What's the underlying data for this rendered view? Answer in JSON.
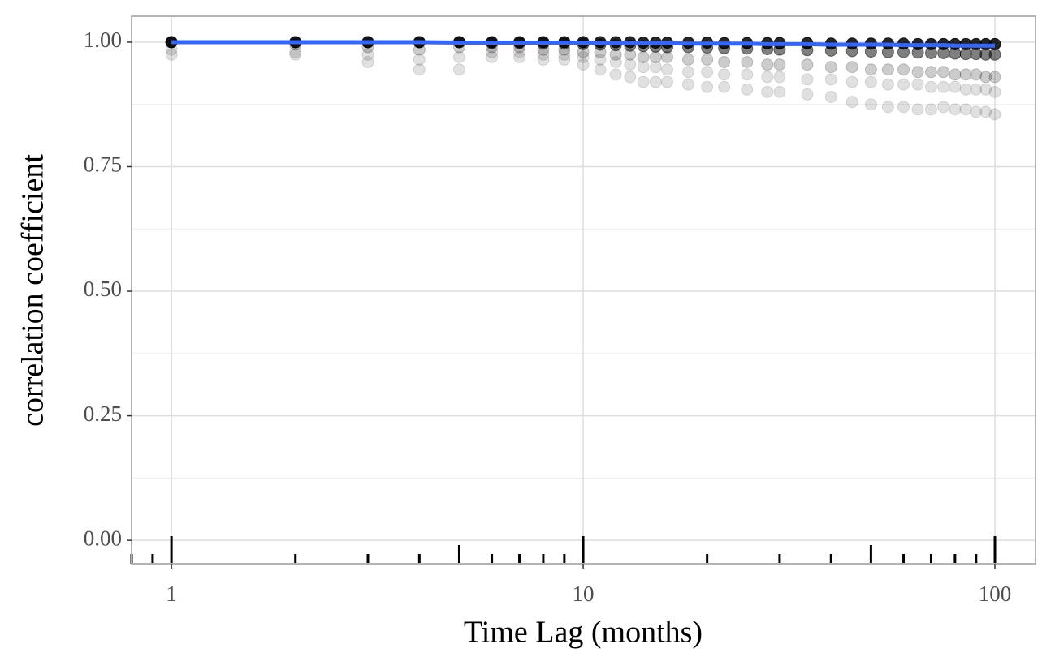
{
  "chart_data": {
    "type": "scatter",
    "x_label": "Time Lag (months)",
    "y_label": "correlation coefficient",
    "x_log": true,
    "xlim": [
      0.8,
      125.5
    ],
    "xticks": [
      1,
      10,
      100
    ],
    "ylim": [
      -0.047,
      1.052
    ],
    "yticks": [
      {
        "value": 0,
        "label": "0.00"
      },
      {
        "value": 0.25,
        "label": "0.25"
      },
      {
        "value": 0.5,
        "label": "0.50"
      },
      {
        "value": 0.75,
        "label": "0.75"
      },
      {
        "value": 1,
        "label": "1.00"
      }
    ],
    "minor_yticks": [
      0.125,
      0.375,
      0.625,
      0.875
    ],
    "grid": true,
    "logticks": true,
    "x": [
      1,
      2,
      3,
      4,
      5,
      6,
      7,
      8,
      9,
      10,
      11,
      12,
      13,
      14,
      15,
      16,
      18,
      20,
      22,
      25,
      28,
      30,
      35,
      40,
      45,
      50,
      55,
      60,
      65,
      70,
      75,
      80,
      85,
      90,
      95,
      100
    ],
    "series": [
      {
        "color": "#000000",
        "alpha": 0.12,
        "values": [
          0.975,
          0.975,
          0.96,
          0.945,
          0.945,
          0.97,
          0.97,
          0.965,
          0.965,
          0.955,
          0.945,
          0.935,
          0.93,
          0.92,
          0.92,
          0.92,
          0.915,
          0.91,
          0.91,
          0.905,
          0.9,
          0.9,
          0.895,
          0.89,
          0.88,
          0.875,
          0.87,
          0.87,
          0.865,
          0.865,
          0.87,
          0.865,
          0.865,
          0.86,
          0.86,
          0.855
        ]
      },
      {
        "color": "#000000",
        "alpha": 0.12,
        "values": [
          0.985,
          0.98,
          0.975,
          0.965,
          0.97,
          0.98,
          0.98,
          0.975,
          0.975,
          0.97,
          0.965,
          0.96,
          0.955,
          0.95,
          0.95,
          0.945,
          0.94,
          0.94,
          0.935,
          0.935,
          0.93,
          0.93,
          0.925,
          0.925,
          0.92,
          0.92,
          0.915,
          0.915,
          0.915,
          0.91,
          0.91,
          0.91,
          0.905,
          0.905,
          0.905,
          0.9
        ]
      },
      {
        "color": "#000000",
        "alpha": 0.2,
        "values": [
          1,
          0.995,
          0.99,
          0.985,
          0.99,
          0.99,
          0.99,
          0.985,
          0.985,
          0.98,
          0.98,
          0.975,
          0.975,
          0.97,
          0.97,
          0.97,
          0.965,
          0.965,
          0.96,
          0.96,
          0.955,
          0.955,
          0.955,
          0.95,
          0.95,
          0.945,
          0.945,
          0.945,
          0.94,
          0.94,
          0.94,
          0.935,
          0.935,
          0.935,
          0.93,
          0.93
        ]
      },
      {
        "color": "#000000",
        "alpha": 0.5,
        "values": [
          1,
          1,
          1,
          1,
          1,
          0.998,
          0.998,
          0.997,
          0.997,
          0.996,
          0.995,
          0.994,
          0.993,
          0.992,
          0.991,
          0.99,
          0.99,
          0.989,
          0.988,
          0.987,
          0.986,
          0.985,
          0.984,
          0.983,
          0.982,
          0.981,
          0.98,
          0.98,
          0.979,
          0.978,
          0.978,
          0.977,
          0.976,
          0.976,
          0.975,
          0.975
        ]
      },
      {
        "color": "#000000",
        "alpha": 0.85,
        "values": [
          1,
          1,
          1,
          1,
          1,
          1,
          1,
          1,
          1,
          1,
          1,
          1,
          1,
          0.999,
          0.999,
          0.999,
          0.999,
          0.999,
          0.998,
          0.998,
          0.998,
          0.998,
          0.998,
          0.997,
          0.997,
          0.997,
          0.997,
          0.997,
          0.996,
          0.996,
          0.996,
          0.996,
          0.996,
          0.996,
          0.996,
          0.996
        ]
      }
    ],
    "trend": {
      "color": "#3366ff",
      "values": [
        1,
        1,
        1,
        1,
        0.999,
        0.999,
        0.999,
        0.999,
        0.999,
        0.999,
        0.998,
        0.998,
        0.998,
        0.998,
        0.998,
        0.998,
        0.997,
        0.997,
        0.997,
        0.997,
        0.996,
        0.996,
        0.996,
        0.995,
        0.995,
        0.995,
        0.995,
        0.994,
        0.994,
        0.994,
        0.994,
        0.993,
        0.993,
        0.993,
        0.993,
        0.993
      ]
    }
  }
}
